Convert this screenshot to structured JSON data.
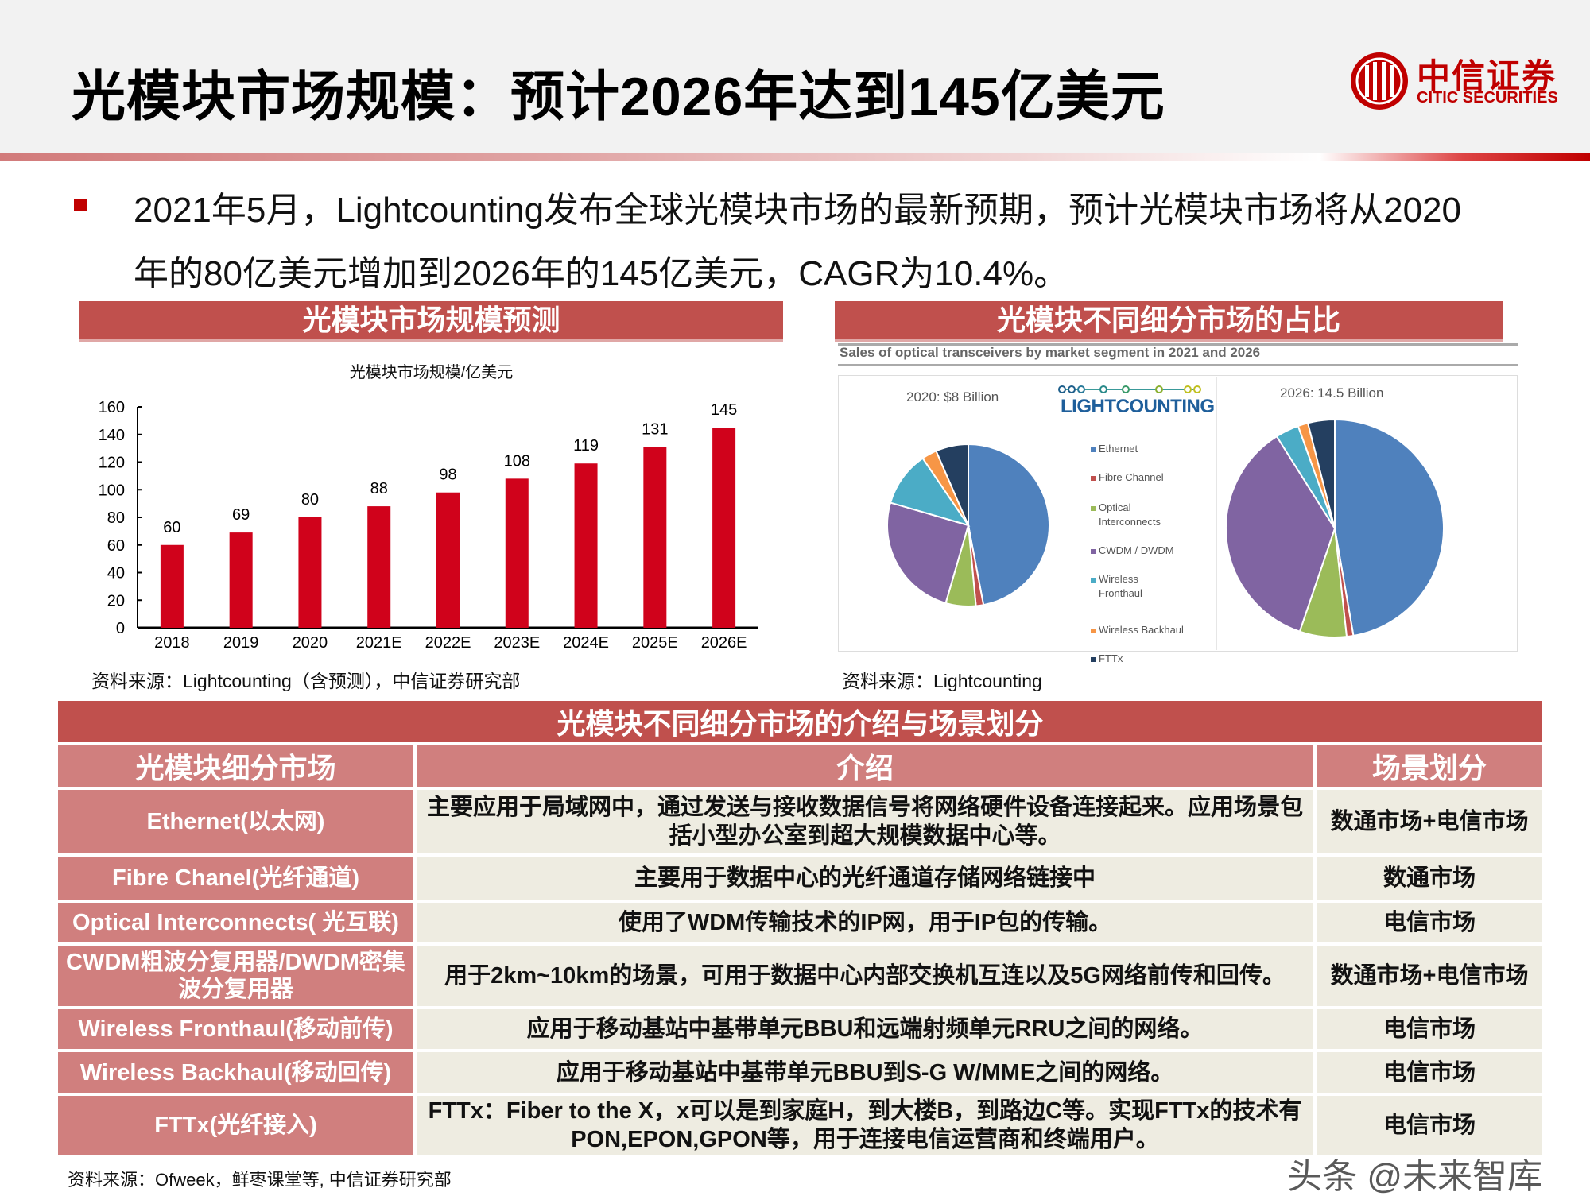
{
  "header": {
    "title": "光模块市场规模：预计2026年达到145亿美元",
    "logo_cn": "中信证券",
    "logo_en": "CITIC SECURITIES",
    "brand_color": "#c00000"
  },
  "summary": {
    "line1": "2021年5月，Lightcounting发布全球光模块市场的最新预期，预计光模块市场将从2020",
    "line2": "年的80亿美元增加到2026年的145亿美元，CAGR为10.4%。"
  },
  "left_panel": {
    "heading": "光模块市场规模预测",
    "source": "资料来源：Lightcounting（含预测），中信证券研究部"
  },
  "right_panel": {
    "heading": "光模块不同细分市场的占比",
    "subtitle": "Sales of optical transceivers by market segment in 2021 and 2026",
    "logo": "LIGHTCOUNTING",
    "source": "资料来源：Lightcounting"
  },
  "chart_data": [
    {
      "type": "bar",
      "title": "光模块市场规模/亿美元",
      "categories": [
        "2018",
        "2019",
        "2020",
        "2021E",
        "2022E",
        "2023E",
        "2024E",
        "2025E",
        "2026E"
      ],
      "values": [
        60,
        69,
        80,
        88,
        98,
        108,
        119,
        131,
        145
      ],
      "yticks": [
        "0",
        "20",
        "40",
        "60",
        "80",
        "100",
        "120",
        "140",
        "160"
      ],
      "ylim": [
        0,
        160
      ],
      "grid": false,
      "color": "#d0021b",
      "data_labels": true
    },
    {
      "type": "pie",
      "title": "2020: $8 Billion",
      "categories": [
        "Ethernet",
        "Fibre Channel",
        "Optical Interconnects",
        "CWDM / DWDM",
        "Wireless Fronthaul",
        "Wireless Backhaul",
        "FTTx"
      ],
      "values": [
        47,
        1.5,
        6,
        25,
        11,
        3,
        6.5
      ],
      "colors": [
        "#4f81bd",
        "#c0504d",
        "#9bbb59",
        "#8064a2",
        "#4bacc6",
        "#f79646",
        "#243f60"
      ]
    },
    {
      "type": "pie",
      "title": "2026: 14.5 Billion",
      "categories": [
        "Ethernet",
        "Fibre Channel",
        "Optical Interconnects",
        "CWDM / DWDM",
        "Wireless Fronthaul",
        "Wireless Backhaul",
        "FTTx"
      ],
      "values": [
        47.5,
        1,
        7,
        36,
        3.5,
        1.5,
        4
      ],
      "colors": [
        "#4f81bd",
        "#c0504d",
        "#9bbb59",
        "#8064a2",
        "#4bacc6",
        "#f79646",
        "#243f60"
      ],
      "legend": {
        "placement": "between pies",
        "items": [
          {
            "label1": "Ethernet",
            "label2": ""
          },
          {
            "label1": "Fibre Channel",
            "label2": ""
          },
          {
            "label1": "Optical",
            "label2": "Interconnects"
          },
          {
            "label1": "CWDM / DWDM",
            "label2": ""
          },
          {
            "label1": "Wireless",
            "label2": "Fronthaul"
          },
          {
            "label1": "Wireless Backhaul",
            "label2": ""
          },
          {
            "label1": "FTTx",
            "label2": ""
          }
        ]
      }
    }
  ],
  "table": {
    "caption": "光模块不同细分市场的介绍与场景划分",
    "headers": [
      "光模块细分市场",
      "介绍",
      "场景划分"
    ],
    "rows": [
      {
        "market": "Ethernet(以太网)",
        "intro": "主要应用于局域网中，通过发送与接收数据信号将网络硬件设备连接起来。应用场景包括小型办公室到超大规模数据中心等。",
        "scene": "数通市场+电信市场"
      },
      {
        "market": "Fibre Chanel(光纤通道)",
        "intro": "主要用于数据中心的光纤通道存储网络链接中",
        "scene": "数通市场"
      },
      {
        "market": "Optical Interconnects( 光互联)",
        "intro": "使用了WDM传输技术的IP网，用于IP包的传输。",
        "scene": "电信市场"
      },
      {
        "market": "CWDM粗波分复用器/DWDM密集波分复用器",
        "intro": "用于2km~10km的场景，可用于数据中心内部交换机互连以及5G网络前传和回传。",
        "scene": "数通市场+电信市场"
      },
      {
        "market": "Wireless Fronthaul(移动前传)",
        "intro": "应用于移动基站中基带单元BBU和远端射频单元RRU之间的网络。",
        "scene": "电信市场"
      },
      {
        "market": "Wireless Backhaul(移动回传)",
        "intro": "应用于移动基站中基带单元BBU到S-G W/MME之间的网络。",
        "scene": "电信市场"
      },
      {
        "market": "FTTx(光纤接入)",
        "intro": "FTTx：Fiber to the X，x可以是到家庭H，到大楼B，到路边C等。实现FTTx的技术有PON,EPON,GPON等，用于连接电信运营商和终端用户。",
        "scene": "电信市场"
      }
    ],
    "source": "资料来源：Ofweek，鲜枣课堂等, 中信证券研究部"
  },
  "watermark": "头条 @未来智库"
}
